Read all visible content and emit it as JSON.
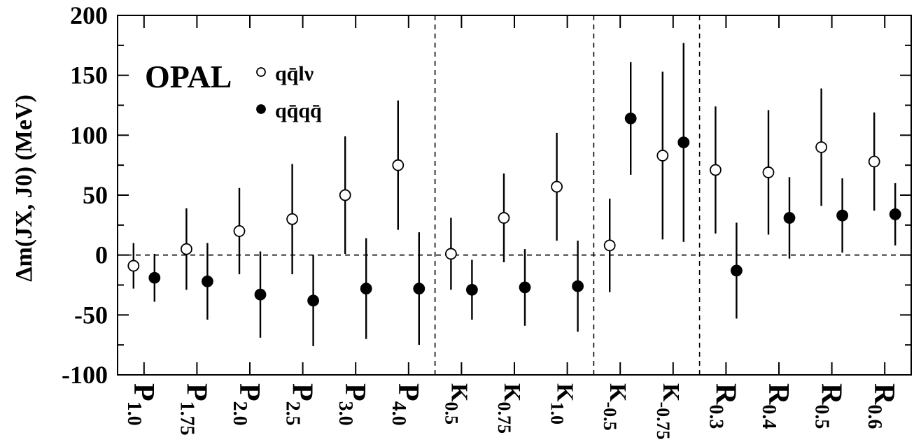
{
  "chart_data": {
    "type": "scatter",
    "title": "",
    "xlabel": "",
    "ylabel": "Δm(J_X, J_0) (MeV)",
    "ylim": [
      -100,
      200
    ],
    "yticks": [
      "200",
      "150",
      "100",
      "50",
      "0",
      "-50",
      "-100"
    ],
    "ytick_values": [
      200,
      150,
      100,
      50,
      0,
      -50,
      -100
    ],
    "annotation": "OPAL",
    "grid": false,
    "legend_position": "top-left",
    "reference_line_y": 0,
    "group_separators_after": [
      "P4.0",
      "K0.75_neg_none"
    ],
    "categories": [
      {
        "base": "P",
        "sub": "1.0"
      },
      {
        "base": "P",
        "sub": "1.75"
      },
      {
        "base": "P",
        "sub": "2.0"
      },
      {
        "base": "P",
        "sub": "2.5"
      },
      {
        "base": "P",
        "sub": "3.0"
      },
      {
        "base": "P",
        "sub": "4.0"
      },
      {
        "base": "K",
        "sub": "0.5"
      },
      {
        "base": "K",
        "sub": "0.75"
      },
      {
        "base": "K",
        "sub": "1.0"
      },
      {
        "base": "K",
        "sub": "-0.5"
      },
      {
        "base": "K",
        "sub": "-0.75"
      },
      {
        "base": "R",
        "sub": "0.3"
      },
      {
        "base": "R",
        "sub": "0.4"
      },
      {
        "base": "R",
        "sub": "0.5"
      },
      {
        "base": "R",
        "sub": "0.6"
      }
    ],
    "series": [
      {
        "name": "qq̄lν",
        "marker": "open-circle",
        "values": [
          -9,
          5,
          20,
          30,
          50,
          75,
          1,
          31,
          57,
          8,
          83,
          71,
          69,
          90,
          78
        ],
        "err_low": [
          19,
          34,
          36,
          46,
          49,
          54,
          30,
          37,
          45,
          39,
          70,
          53,
          52,
          49,
          41
        ],
        "err_high": [
          19,
          34,
          36,
          46,
          49,
          54,
          30,
          37,
          45,
          39,
          70,
          53,
          52,
          49,
          41
        ]
      },
      {
        "name": "qq̄qq̄",
        "marker": "filled-circle",
        "values": [
          -19,
          -22,
          -33,
          -38,
          -28,
          -28,
          -29,
          -27,
          -26,
          114,
          94,
          -13,
          31,
          33,
          34
        ],
        "err_low": [
          20,
          32,
          36,
          38,
          42,
          47,
          25,
          32,
          38,
          47,
          83,
          40,
          34,
          31,
          26
        ],
        "err_high": [
          20,
          32,
          36,
          38,
          42,
          47,
          25,
          32,
          38,
          47,
          83,
          40,
          34,
          31,
          26
        ]
      }
    ]
  }
}
